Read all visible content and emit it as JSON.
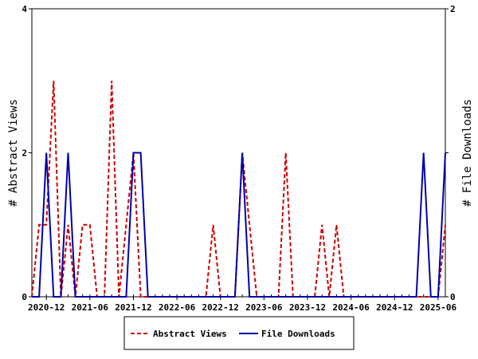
{
  "chart_data": {
    "type": "line",
    "title": "",
    "x_ticks": [
      "2020-12",
      "2021-06",
      "2021-12",
      "2022-06",
      "2022-12",
      "2023-06",
      "2023-12",
      "2024-06",
      "2024-12",
      "2025-06"
    ],
    "x_start": "2020-10",
    "x_end": "2025-07",
    "y_left": {
      "label": "# Abstract Views",
      "ylim": [
        0,
        4
      ],
      "ticks": [
        0,
        2,
        4
      ]
    },
    "y_right": {
      "label": "# File Downloads",
      "ylim": [
        0,
        2
      ],
      "ticks": [
        0,
        1,
        2
      ]
    },
    "grid": false,
    "legend_position": "bottom",
    "series": [
      {
        "name": "Abstract Views",
        "axis": "left",
        "color": "#cc0000",
        "dash": "dashed",
        "x": [
          "2020-10",
          "2020-11",
          "2020-12",
          "2021-01",
          "2021-02",
          "2021-03",
          "2021-04",
          "2021-05",
          "2021-06",
          "2021-07",
          "2021-08",
          "2021-09",
          "2021-10",
          "2021-11",
          "2021-12",
          "2022-01",
          "2022-02",
          "2022-03",
          "2022-04",
          "2022-05",
          "2022-06",
          "2022-07",
          "2022-08",
          "2022-09",
          "2022-10",
          "2022-11",
          "2022-12",
          "2023-01",
          "2023-02",
          "2023-03",
          "2023-04",
          "2023-05",
          "2023-06",
          "2023-07",
          "2023-08",
          "2023-09",
          "2023-10",
          "2023-11",
          "2023-12",
          "2024-01",
          "2024-02",
          "2024-03",
          "2024-04",
          "2024-05",
          "2024-06",
          "2024-07",
          "2024-08",
          "2024-09",
          "2024-10",
          "2024-11",
          "2024-12",
          "2025-01",
          "2025-02",
          "2025-03",
          "2025-04",
          "2025-05",
          "2025-06",
          "2025-07"
        ],
        "values": [
          0,
          1,
          1,
          3,
          0,
          1,
          0,
          1,
          1,
          0,
          0,
          3,
          0,
          1,
          2,
          0,
          0,
          0,
          0,
          0,
          0,
          0,
          0,
          0,
          0,
          1,
          0,
          0,
          0,
          2,
          1,
          0,
          0,
          0,
          0,
          2,
          0,
          0,
          0,
          0,
          1,
          0,
          1,
          0,
          0,
          0,
          0,
          0,
          0,
          0,
          0,
          0,
          0,
          0,
          0,
          0,
          0,
          1
        ]
      },
      {
        "name": "File Downloads",
        "axis": "right",
        "color": "#0000aa",
        "dash": "solid",
        "x": [
          "2020-10",
          "2020-11",
          "2020-12",
          "2021-01",
          "2021-02",
          "2021-03",
          "2021-04",
          "2021-05",
          "2021-06",
          "2021-07",
          "2021-08",
          "2021-09",
          "2021-10",
          "2021-11",
          "2021-12",
          "2022-01",
          "2022-02",
          "2022-03",
          "2022-04",
          "2022-05",
          "2022-06",
          "2022-07",
          "2022-08",
          "2022-09",
          "2022-10",
          "2022-11",
          "2022-12",
          "2023-01",
          "2023-02",
          "2023-03",
          "2023-04",
          "2023-05",
          "2023-06",
          "2023-07",
          "2023-08",
          "2023-09",
          "2023-10",
          "2023-11",
          "2023-12",
          "2024-01",
          "2024-02",
          "2024-03",
          "2024-04",
          "2024-05",
          "2024-06",
          "2024-07",
          "2024-08",
          "2024-09",
          "2024-10",
          "2024-11",
          "2024-12",
          "2025-01",
          "2025-02",
          "2025-03",
          "2025-04",
          "2025-05",
          "2025-06",
          "2025-07"
        ],
        "values": [
          0,
          0,
          1,
          0,
          0,
          1,
          0,
          0,
          0,
          0,
          0,
          0,
          0,
          0,
          1,
          1,
          0,
          0,
          0,
          0,
          0,
          0,
          0,
          0,
          0,
          0,
          0,
          0,
          0,
          1,
          0,
          0,
          0,
          0,
          0,
          0,
          0,
          0,
          0,
          0,
          0,
          0,
          0,
          0,
          0,
          0,
          0,
          0,
          0,
          0,
          0,
          0,
          0,
          0,
          1,
          0,
          0,
          1
        ]
      }
    ]
  }
}
